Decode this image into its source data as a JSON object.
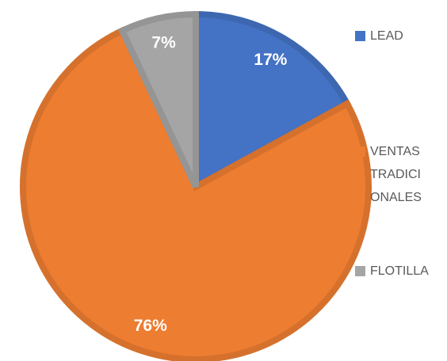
{
  "chart_data": {
    "type": "pie",
    "categories": [
      "LEAD",
      "VENTAS TRADICIONALES",
      "FLOTILLA"
    ],
    "values": [
      17,
      76,
      7
    ],
    "value_labels": [
      "17%",
      "76%",
      "7%"
    ],
    "colors": [
      "#4472c4",
      "#ed7d31",
      "#a5a5a5"
    ],
    "legend": "right"
  }
}
